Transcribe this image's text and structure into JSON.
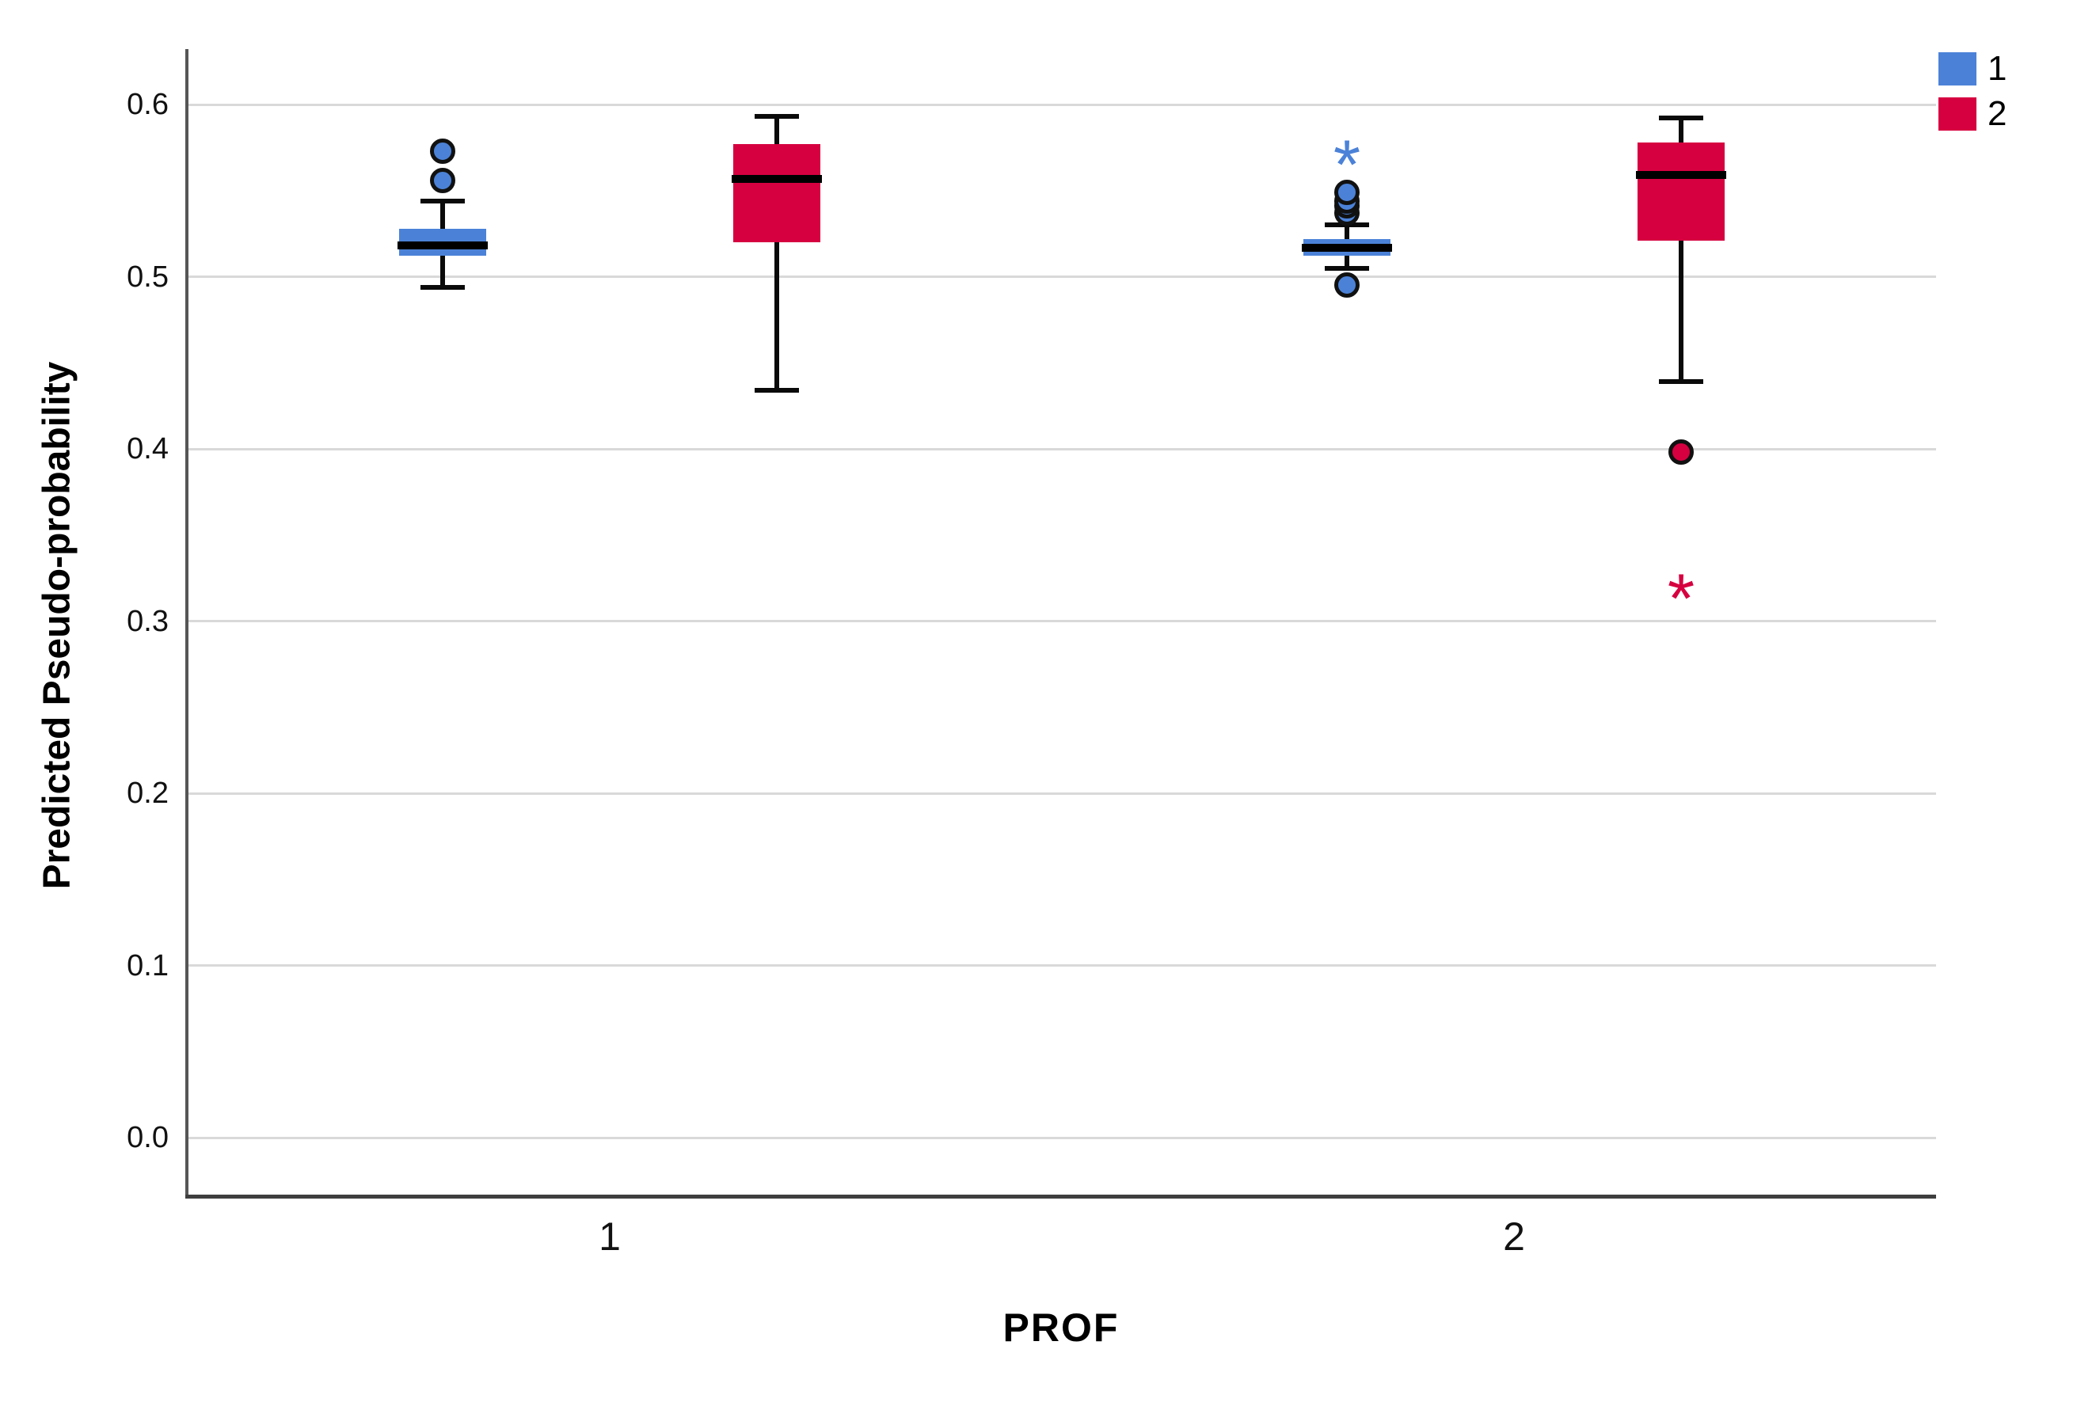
{
  "chart_data": {
    "type": "boxplot",
    "title": "",
    "xlabel": "PROF",
    "ylabel": "Predicted Pseudo-probability",
    "categories": [
      "1",
      "2"
    ],
    "y_ticks": [
      0.0,
      0.1,
      0.2,
      0.3,
      0.4,
      0.5,
      0.6
    ],
    "ylim": [
      -0.033,
      0.632
    ],
    "grid": "horizontal",
    "legend": {
      "position": "top-right",
      "entries": [
        {
          "label": "1",
          "color": "#4B82D8"
        },
        {
          "label": "2",
          "color": "#D60040"
        }
      ]
    },
    "series": [
      {
        "name": "1",
        "color": "#4B82D8",
        "boxes": [
          {
            "category": "1",
            "whisker_low": 0.494,
            "q1": 0.512,
            "median": 0.518,
            "q3": 0.528,
            "whisker_high": 0.544,
            "outliers": [
              0.556,
              0.573
            ],
            "extremes": []
          },
          {
            "category": "2",
            "whisker_low": 0.505,
            "q1": 0.512,
            "median": 0.517,
            "q3": 0.522,
            "whisker_high": 0.53,
            "outliers": [
              0.495,
              0.537,
              0.541,
              0.544,
              0.549
            ],
            "extremes": [
              0.573
            ]
          }
        ]
      },
      {
        "name": "2",
        "color": "#D60040",
        "boxes": [
          {
            "category": "1",
            "whisker_low": 0.434,
            "q1": 0.52,
            "median": 0.557,
            "q3": 0.577,
            "whisker_high": 0.593,
            "outliers": [],
            "extremes": []
          },
          {
            "category": "2",
            "whisker_low": 0.439,
            "q1": 0.521,
            "median": 0.559,
            "q3": 0.578,
            "whisker_high": 0.592,
            "outliers": [
              0.398
            ],
            "extremes": [
              0.321
            ]
          }
        ]
      }
    ]
  }
}
